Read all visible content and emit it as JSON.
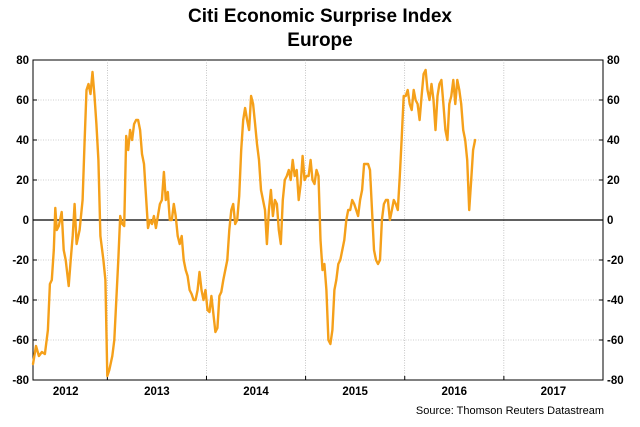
{
  "chart_data": {
    "type": "line",
    "title": "Citi Economic Surprise Index",
    "subtitle": "Europe",
    "source": "Source: Thomson Reuters Datastream",
    "xlabel": "",
    "ylabel": "",
    "ylim": [
      -80,
      80
    ],
    "yticks": [
      80,
      60,
      40,
      20,
      0,
      -20,
      -40,
      -60,
      -80
    ],
    "ytick_labels": [
      "80",
      "60",
      "40",
      "20",
      "0",
      "-20",
      "-40",
      "-60",
      "-80"
    ],
    "x_axis_labels": [
      "2012",
      "2013",
      "2014",
      "2015",
      "2016",
      "2017"
    ],
    "xlim": [
      2011.75,
      2017.5
    ],
    "vertical_gridlines_at": [
      2012.5,
      2013.5,
      2014.5,
      2015.5,
      2016.5
    ],
    "grid": true,
    "legend": "none",
    "colors": {
      "line": "#f5a01a",
      "zero_line": "#000000",
      "grid": "#a0a0a0"
    },
    "series": [
      {
        "values": [
          [
            2011.75,
            -72
          ],
          [
            2011.78,
            -63
          ],
          [
            2011.81,
            -68
          ],
          [
            2011.84,
            -66
          ],
          [
            2011.87,
            -67
          ],
          [
            2011.9,
            -55
          ],
          [
            2011.92,
            -32
          ],
          [
            2011.94,
            -30
          ],
          [
            2011.96,
            -15
          ],
          [
            2011.975,
            6
          ],
          [
            2011.99,
            -5
          ],
          [
            2012.01,
            -3
          ],
          [
            2012.04,
            4
          ],
          [
            2012.06,
            -15
          ],
          [
            2012.08,
            -20
          ],
          [
            2012.11,
            -33
          ],
          [
            2012.13,
            -20
          ],
          [
            2012.15,
            -8
          ],
          [
            2012.17,
            8
          ],
          [
            2012.19,
            -12
          ],
          [
            2012.22,
            -5
          ],
          [
            2012.25,
            10
          ],
          [
            2012.27,
            38
          ],
          [
            2012.29,
            65
          ],
          [
            2012.31,
            68
          ],
          [
            2012.33,
            63
          ],
          [
            2012.35,
            74
          ],
          [
            2012.37,
            62
          ],
          [
            2012.39,
            48
          ],
          [
            2012.41,
            30
          ],
          [
            2012.43,
            -8
          ],
          [
            2012.46,
            -20
          ],
          [
            2012.48,
            -30
          ],
          [
            2012.5,
            -78
          ],
          [
            2012.52,
            -75
          ],
          [
            2012.55,
            -68
          ],
          [
            2012.57,
            -60
          ],
          [
            2012.59,
            -40
          ],
          [
            2012.61,
            -20
          ],
          [
            2012.63,
            2
          ],
          [
            2012.65,
            -2
          ],
          [
            2012.67,
            -3
          ],
          [
            2012.69,
            42
          ],
          [
            2012.71,
            35
          ],
          [
            2012.73,
            45
          ],
          [
            2012.75,
            40
          ],
          [
            2012.77,
            48
          ],
          [
            2012.79,
            50
          ],
          [
            2012.81,
            50
          ],
          [
            2012.83,
            45
          ],
          [
            2012.85,
            33
          ],
          [
            2012.87,
            28
          ],
          [
            2012.89,
            12
          ],
          [
            2012.91,
            -4
          ],
          [
            2012.93,
            0
          ],
          [
            2012.95,
            -2
          ],
          [
            2012.97,
            2
          ],
          [
            2012.99,
            -4
          ],
          [
            2013.01,
            2
          ],
          [
            2013.03,
            8
          ],
          [
            2013.05,
            10
          ],
          [
            2013.07,
            24
          ],
          [
            2013.09,
            10
          ],
          [
            2013.11,
            14
          ],
          [
            2013.13,
            0
          ],
          [
            2013.15,
            0
          ],
          [
            2013.17,
            8
          ],
          [
            2013.19,
            2
          ],
          [
            2013.21,
            -8
          ],
          [
            2013.23,
            -12
          ],
          [
            2013.25,
            -8
          ],
          [
            2013.27,
            -20
          ],
          [
            2013.29,
            -25
          ],
          [
            2013.31,
            -28
          ],
          [
            2013.33,
            -35
          ],
          [
            2013.35,
            -37
          ],
          [
            2013.37,
            -40
          ],
          [
            2013.39,
            -40
          ],
          [
            2013.41,
            -35
          ],
          [
            2013.43,
            -26
          ],
          [
            2013.45,
            -35
          ],
          [
            2013.47,
            -40
          ],
          [
            2013.49,
            -35
          ],
          [
            2013.51,
            -45
          ],
          [
            2013.53,
            -46
          ],
          [
            2013.55,
            -38
          ],
          [
            2013.57,
            -47
          ],
          [
            2013.59,
            -56
          ],
          [
            2013.61,
            -54
          ],
          [
            2013.63,
            -38
          ],
          [
            2013.65,
            -36
          ],
          [
            2013.67,
            -30
          ],
          [
            2013.69,
            -25
          ],
          [
            2013.71,
            -20
          ],
          [
            2013.73,
            -5
          ],
          [
            2013.75,
            5
          ],
          [
            2013.77,
            8
          ],
          [
            2013.79,
            -2
          ],
          [
            2013.81,
            0
          ],
          [
            2013.83,
            12
          ],
          [
            2013.85,
            35
          ],
          [
            2013.87,
            50
          ],
          [
            2013.89,
            56
          ],
          [
            2013.91,
            50
          ],
          [
            2013.93,
            45
          ],
          [
            2013.95,
            62
          ],
          [
            2013.97,
            58
          ],
          [
            2013.99,
            48
          ],
          [
            2014.01,
            38
          ],
          [
            2014.03,
            30
          ],
          [
            2014.05,
            15
          ],
          [
            2014.07,
            10
          ],
          [
            2014.09,
            5
          ],
          [
            2014.11,
            -12
          ],
          [
            2014.13,
            5
          ],
          [
            2014.15,
            15
          ],
          [
            2014.17,
            2
          ],
          [
            2014.19,
            10
          ],
          [
            2014.21,
            8
          ],
          [
            2014.23,
            -5
          ],
          [
            2014.25,
            -12
          ],
          [
            2014.27,
            10
          ],
          [
            2014.29,
            20
          ],
          [
            2014.31,
            22
          ],
          [
            2014.33,
            25
          ],
          [
            2014.35,
            20
          ],
          [
            2014.37,
            30
          ],
          [
            2014.39,
            22
          ],
          [
            2014.41,
            25
          ],
          [
            2014.43,
            10
          ],
          [
            2014.45,
            18
          ],
          [
            2014.47,
            32
          ],
          [
            2014.49,
            20
          ],
          [
            2014.51,
            22
          ],
          [
            2014.53,
            22
          ],
          [
            2014.55,
            30
          ],
          [
            2014.57,
            20
          ],
          [
            2014.59,
            18
          ],
          [
            2014.61,
            25
          ],
          [
            2014.63,
            22
          ],
          [
            2014.65,
            -10
          ],
          [
            2014.67,
            -25
          ],
          [
            2014.69,
            -22
          ],
          [
            2014.71,
            -35
          ],
          [
            2014.73,
            -60
          ],
          [
            2014.75,
            -62
          ],
          [
            2014.77,
            -55
          ],
          [
            2014.79,
            -35
          ],
          [
            2014.81,
            -30
          ],
          [
            2014.83,
            -22
          ],
          [
            2014.85,
            -20
          ],
          [
            2014.87,
            -15
          ],
          [
            2014.89,
            -10
          ],
          [
            2014.91,
            0
          ],
          [
            2014.93,
            5
          ],
          [
            2014.95,
            5
          ],
          [
            2014.97,
            10
          ],
          [
            2014.99,
            8
          ],
          [
            2015.01,
            5
          ],
          [
            2015.03,
            2
          ],
          [
            2015.05,
            10
          ],
          [
            2015.07,
            15
          ],
          [
            2015.09,
            28
          ],
          [
            2015.11,
            28
          ],
          [
            2015.13,
            28
          ],
          [
            2015.15,
            25
          ],
          [
            2015.17,
            5
          ],
          [
            2015.19,
            -15
          ],
          [
            2015.21,
            -20
          ],
          [
            2015.23,
            -22
          ],
          [
            2015.25,
            -20
          ],
          [
            2015.27,
            0
          ],
          [
            2015.29,
            8
          ],
          [
            2015.31,
            10
          ],
          [
            2015.33,
            10
          ],
          [
            2015.35,
            0
          ],
          [
            2015.37,
            5
          ],
          [
            2015.39,
            10
          ],
          [
            2015.41,
            8
          ],
          [
            2015.43,
            5
          ],
          [
            2015.45,
            22
          ],
          [
            2015.47,
            42
          ],
          [
            2015.49,
            62
          ],
          [
            2015.51,
            62
          ],
          [
            2015.53,
            65
          ],
          [
            2015.55,
            58
          ],
          [
            2015.57,
            55
          ],
          [
            2015.59,
            65
          ],
          [
            2015.61,
            60
          ],
          [
            2015.63,
            58
          ],
          [
            2015.65,
            50
          ],
          [
            2015.67,
            62
          ],
          [
            2015.69,
            73
          ],
          [
            2015.71,
            75
          ],
          [
            2015.73,
            65
          ],
          [
            2015.75,
            60
          ],
          [
            2015.77,
            68
          ],
          [
            2015.79,
            60
          ],
          [
            2015.81,
            45
          ],
          [
            2015.83,
            62
          ],
          [
            2015.85,
            68
          ],
          [
            2015.87,
            70
          ],
          [
            2015.89,
            58
          ],
          [
            2015.91,
            45
          ],
          [
            2015.93,
            40
          ],
          [
            2015.95,
            58
          ],
          [
            2015.97,
            62
          ],
          [
            2015.99,
            70
          ],
          [
            2016.01,
            58
          ],
          [
            2016.03,
            70
          ],
          [
            2016.05,
            65
          ],
          [
            2016.07,
            58
          ],
          [
            2016.09,
            45
          ],
          [
            2016.11,
            40
          ],
          [
            2016.13,
            30
          ],
          [
            2016.15,
            5
          ],
          [
            2016.17,
            20
          ],
          [
            2016.19,
            35
          ],
          [
            2016.21,
            40
          ]
        ]
      }
    ]
  }
}
